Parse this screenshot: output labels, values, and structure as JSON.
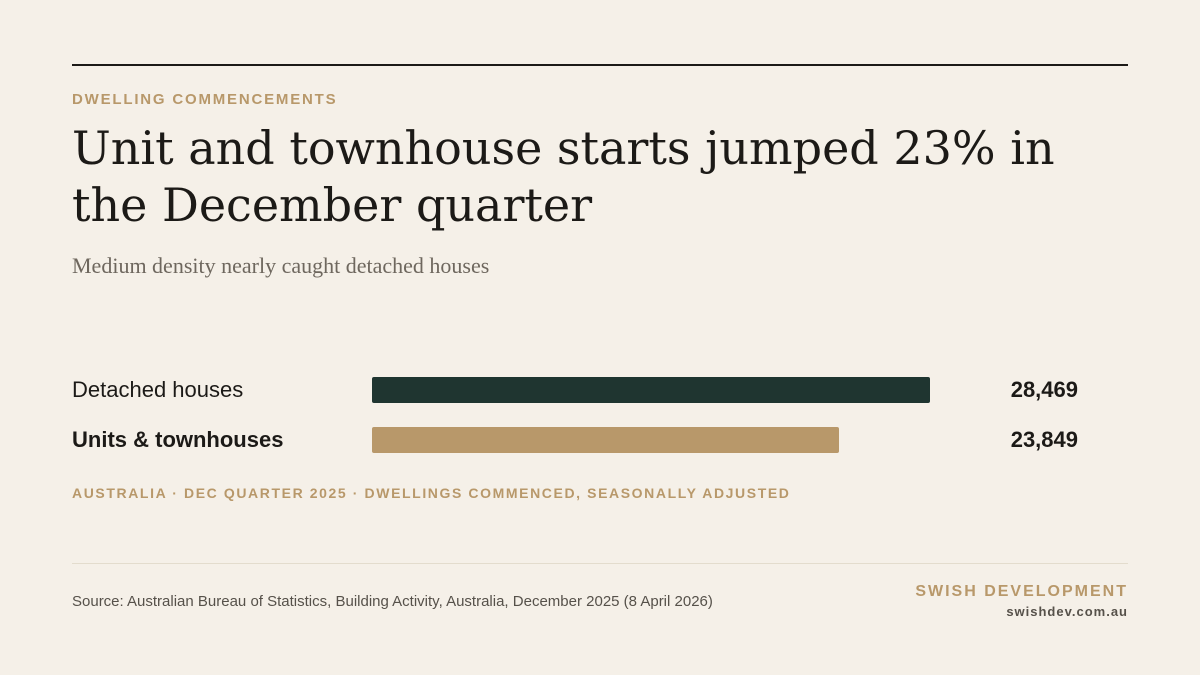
{
  "eyebrow": "DWELLING COMMENCEMENTS",
  "headline": "Unit and townhouse starts jumped 23% in the December quarter",
  "subtitle": "Medium density nearly caught detached houses",
  "chart_data": {
    "type": "bar",
    "orientation": "horizontal",
    "categories": [
      "Detached houses",
      "Units & townhouses"
    ],
    "values": [
      28469,
      23849
    ],
    "value_labels": [
      "28,469",
      "23,849"
    ],
    "colors": [
      "#1f3530",
      "#b8986a"
    ],
    "note": "AUSTRALIA · DEC QUARTER 2025 · DWELLINGS COMMENCED, SEASONALLY ADJUSTED",
    "grid": false,
    "legend": "none"
  },
  "footer": {
    "source": "Source: Australian Bureau of Statistics, Building Activity, Australia, December 2025 (8 April 2026)",
    "brand": "SWISH DEVELOPMENT",
    "url": "swishdev.com.au"
  },
  "colors": {
    "background": "#f5f0e8",
    "accent": "#b8986a",
    "text": "#1c1a17"
  }
}
